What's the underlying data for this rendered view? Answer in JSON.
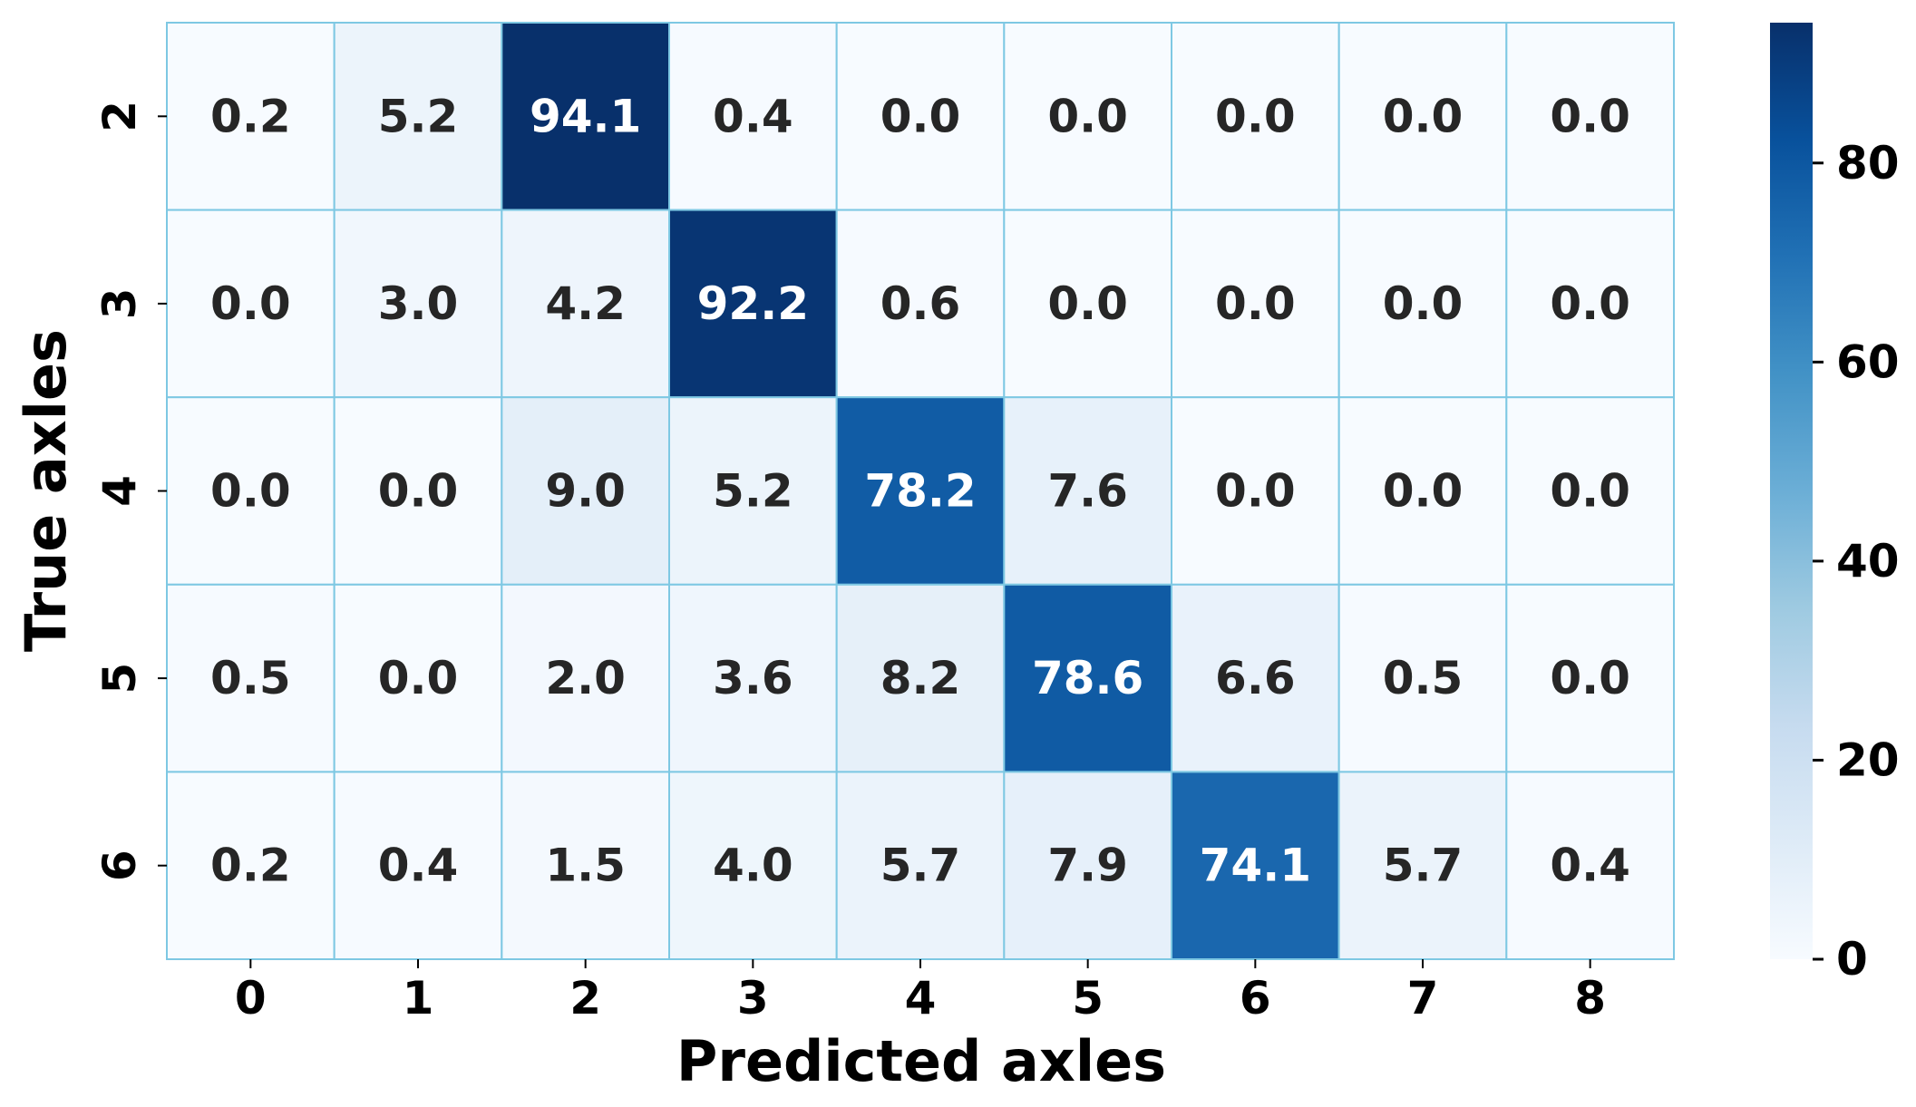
{
  "chart_data": {
    "type": "heatmap",
    "title": "",
    "xlabel": "Predicted axles",
    "ylabel": "True axles",
    "x_categories": [
      "0",
      "1",
      "2",
      "3",
      "4",
      "5",
      "6",
      "7",
      "8"
    ],
    "y_categories": [
      "2",
      "3",
      "4",
      "5",
      "6"
    ],
    "values": [
      [
        0.2,
        5.2,
        94.1,
        0.4,
        0.0,
        0.0,
        0.0,
        0.0,
        0.0
      ],
      [
        0.0,
        3.0,
        4.2,
        92.2,
        0.6,
        0.0,
        0.0,
        0.0,
        0.0
      ],
      [
        0.0,
        0.0,
        9.0,
        5.2,
        78.2,
        7.6,
        0.0,
        0.0,
        0.0
      ],
      [
        0.5,
        0.0,
        2.0,
        3.6,
        8.2,
        78.6,
        6.6,
        0.5,
        0.0
      ],
      [
        0.2,
        0.4,
        1.5,
        4.0,
        5.7,
        7.9,
        74.1,
        5.7,
        0.4
      ]
    ],
    "value_format": "0.0",
    "colormap": "Blues",
    "color_range": [
      0,
      94.1
    ],
    "colorbar_ticks": [
      0,
      20,
      40,
      60,
      80
    ],
    "cell_border_color": "#7ec8e3",
    "dark_text_color": "#262626",
    "light_text_color": "#ffffff",
    "grid": true,
    "legend": "colorbar-right"
  }
}
